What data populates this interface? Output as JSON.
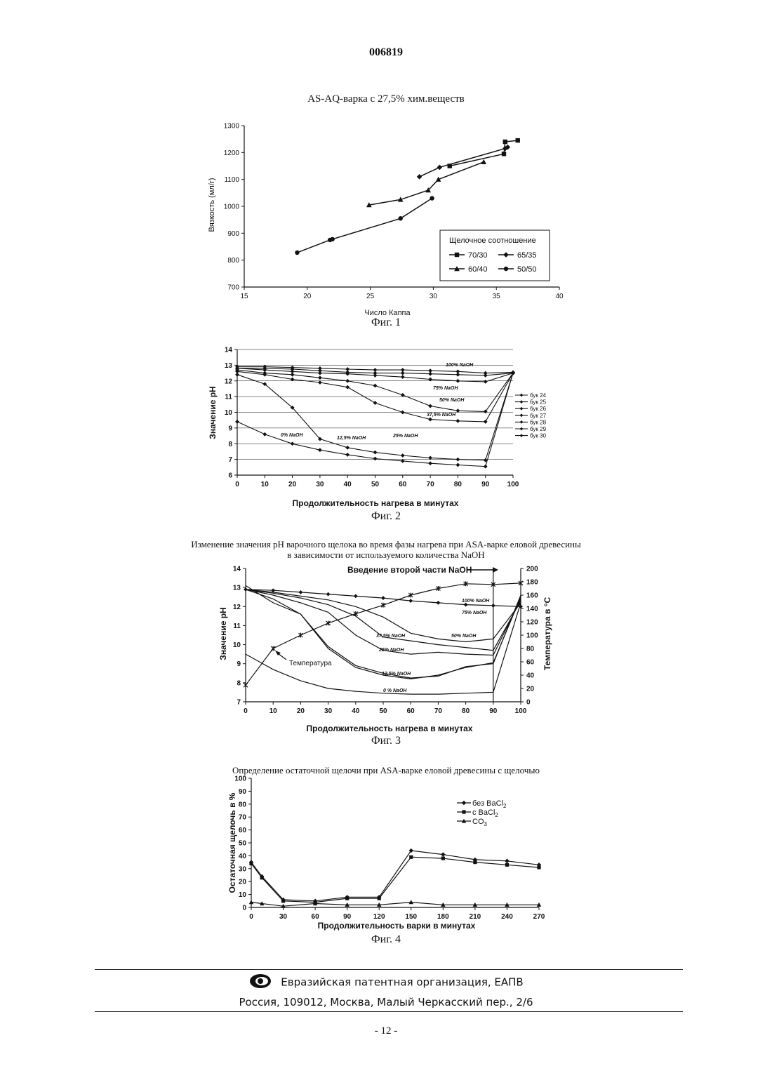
{
  "document": {
    "number": "006819",
    "page": "- 12 -",
    "footer_org": "Евразийская патентная организация, ЕАПВ",
    "footer_address": "Россия, 109012, Москва, Малый Черкасский пер., 2/6",
    "logo_icon": "eapo-logo-icon"
  },
  "chart_data": [
    {
      "id": "fig1",
      "type": "line",
      "title": "AS-AQ-варка с 27,5% хим.веществ",
      "caption": "Фиг. 1",
      "xlabel": "Число Каппа",
      "ylabel": "Вязкость (мл/г)",
      "xlim": [
        15,
        40
      ],
      "ylim": [
        700,
        1300
      ],
      "xticks": [
        "15",
        "20",
        "25",
        "30",
        "35",
        "40"
      ],
      "yticks": [
        "700",
        "800",
        "900",
        "1000",
        "1100",
        "1200",
        "1300"
      ],
      "legend_title": "Щелочное соотношение",
      "legend_position": "bottom-right",
      "series": [
        {
          "name": "70/30",
          "marker": "square",
          "x": [
            31.3,
            35.6,
            35.7,
            36.7
          ],
          "y": [
            1150,
            1195,
            1240,
            1245
          ]
        },
        {
          "name": "65/35",
          "marker": "diamond",
          "x": [
            28.9,
            30.5,
            35.7,
            35.9
          ],
          "y": [
            1110,
            1145,
            1215,
            1220
          ]
        },
        {
          "name": "60/40",
          "marker": "triangle",
          "x": [
            24.9,
            27.4,
            29.6,
            30.4,
            34.0
          ],
          "y": [
            1005,
            1025,
            1060,
            1100,
            1165
          ]
        },
        {
          "name": "50/50",
          "marker": "circle",
          "x": [
            19.2,
            21.8,
            22.0,
            27.4,
            29.9
          ],
          "y": [
            828,
            875,
            878,
            955,
            1030
          ]
        }
      ]
    },
    {
      "id": "fig2",
      "type": "line",
      "caption": "Фиг. 2",
      "xlabel": "Продолжительность нагрева в минутах",
      "ylabel": "Значение pH",
      "xlim": [
        0,
        100
      ],
      "ylim": [
        6,
        14
      ],
      "xticks": [
        "0",
        "10",
        "20",
        "30",
        "40",
        "50",
        "60",
        "70",
        "80",
        "90",
        "100"
      ],
      "yticks": [
        "6",
        "7",
        "8",
        "9",
        "10",
        "11",
        "12",
        "13",
        "14"
      ],
      "grid": true,
      "legend_position": "right",
      "annotations": [
        "100% NaOH",
        "75% NaOH",
        "50% NaOH",
        "37,5% NaOH",
        "25% NaOH",
        "12,5% NaOH",
        "0% NaOH"
      ],
      "series": [
        {
          "name": "бук 24",
          "x": [
            0,
            10,
            20,
            30,
            40,
            50,
            60,
            70,
            80,
            90,
            100
          ],
          "y": [
            9.4,
            8.6,
            8.0,
            7.6,
            7.3,
            7.05,
            6.9,
            6.75,
            6.65,
            6.55,
            12.5
          ]
        },
        {
          "name": "бук 25",
          "x": [
            0,
            10,
            20,
            30,
            40,
            50,
            60,
            70,
            80,
            90,
            100
          ],
          "y": [
            12.4,
            11.8,
            10.3,
            8.3,
            7.75,
            7.45,
            7.25,
            7.1,
            7.0,
            6.95,
            12.5
          ]
        },
        {
          "name": "бук 26",
          "x": [
            0,
            10,
            20,
            30,
            40,
            50,
            60,
            70,
            80,
            90,
            100
          ],
          "y": [
            12.6,
            12.4,
            12.1,
            11.9,
            11.6,
            10.6,
            10.0,
            9.55,
            9.45,
            9.4,
            12.5
          ]
        },
        {
          "name": "бук 27",
          "x": [
            0,
            10,
            20,
            30,
            40,
            50,
            60,
            70,
            80,
            90,
            100
          ],
          "y": [
            12.7,
            12.5,
            12.4,
            12.2,
            12.0,
            11.7,
            11.1,
            10.4,
            10.1,
            10.05,
            12.5
          ]
        },
        {
          "name": "бук 28",
          "x": [
            0,
            10,
            20,
            30,
            40,
            50,
            60,
            70,
            80,
            90,
            100
          ],
          "y": [
            12.8,
            12.7,
            12.6,
            12.5,
            12.45,
            12.35,
            12.25,
            12.1,
            12.0,
            11.95,
            12.5
          ]
        },
        {
          "name": "бук 29",
          "x": [
            0,
            10,
            20,
            30,
            40,
            50,
            60,
            70,
            80,
            90,
            100
          ],
          "y": [
            12.8,
            12.8,
            12.75,
            12.65,
            12.55,
            12.5,
            12.5,
            12.45,
            12.4,
            12.35,
            12.5
          ]
        },
        {
          "name": "бук 30",
          "x": [
            0,
            10,
            20,
            30,
            40,
            50,
            60,
            70,
            80,
            90,
            100
          ],
          "y": [
            12.9,
            12.9,
            12.85,
            12.8,
            12.75,
            12.7,
            12.7,
            12.65,
            12.6,
            12.5,
            12.55
          ]
        }
      ]
    },
    {
      "id": "fig3",
      "type": "line",
      "title": "Изменение значения pH варочного щелока во время фазы нагрева при ASA-варке еловой древесины",
      "subtitle": "в зависимости от используемого количества NaOH",
      "caption": "Фиг. 3",
      "xlabel": "Продолжительность нагрева в минутах",
      "ylabel": "Значение pH",
      "y2label": "Температура в °C",
      "xlim": [
        0,
        100
      ],
      "ylim": [
        7,
        14
      ],
      "y2lim": [
        0,
        200
      ],
      "xticks": [
        "0",
        "10",
        "20",
        "30",
        "40",
        "50",
        "60",
        "70",
        "80",
        "90",
        "100"
      ],
      "yticks": [
        "7",
        "8",
        "9",
        "10",
        "11",
        "12",
        "13",
        "14"
      ],
      "y2ticks": [
        "0",
        "20",
        "40",
        "60",
        "80",
        "100",
        "120",
        "140",
        "160",
        "180",
        "200"
      ],
      "top_annotation": "Введение второй части NaOH",
      "temperature_label": "Температура",
      "annotations": [
        "100% NaOH",
        "75% NaOH",
        "50% NaOH",
        "37,5% NaOH",
        "25% NaOH",
        "12,5% NaOH",
        "0 % NaOH"
      ],
      "series": [
        {
          "name": "100% NaOH",
          "x": [
            0,
            10,
            20,
            30,
            40,
            50,
            60,
            70,
            80,
            90,
            100
          ],
          "y": [
            12.9,
            12.85,
            12.75,
            12.65,
            12.55,
            12.45,
            12.3,
            12.2,
            12.1,
            12.05,
            12.0
          ]
        },
        {
          "name": "75% NaOH",
          "x": [
            0,
            10,
            20,
            30,
            40,
            50,
            60,
            70,
            80,
            90,
            100
          ],
          "y": [
            12.9,
            12.75,
            12.55,
            12.35,
            12.0,
            11.45,
            10.6,
            10.3,
            10.15,
            10.3,
            12.2
          ]
        },
        {
          "name": "50% NaOH",
          "x": [
            0,
            10,
            20,
            30,
            40,
            50,
            60,
            70,
            80,
            90,
            100
          ],
          "y": [
            12.9,
            12.7,
            12.45,
            12.1,
            11.5,
            10.4,
            10.2,
            10.0,
            9.85,
            9.7,
            12.3
          ]
        },
        {
          "name": "37,5% NaOH",
          "x": [
            0,
            10,
            20,
            30,
            40,
            50,
            60,
            70,
            80,
            90,
            100
          ],
          "y": [
            12.9,
            12.6,
            12.2,
            11.7,
            10.5,
            9.7,
            9.5,
            9.6,
            9.5,
            9.45,
            12.4
          ]
        },
        {
          "name": "25% NaOH",
          "x": [
            0,
            10,
            20,
            30,
            40,
            50,
            60,
            70,
            80,
            90,
            100
          ],
          "y": [
            12.9,
            12.4,
            11.6,
            9.8,
            8.8,
            8.4,
            8.2,
            8.4,
            8.8,
            9.05,
            12.5
          ]
        },
        {
          "name": "12,5% NaOH",
          "x": [
            0,
            10,
            20,
            30,
            40,
            50,
            60,
            70,
            80,
            90,
            100
          ],
          "y": [
            13.1,
            12.2,
            11.6,
            9.9,
            8.9,
            8.5,
            8.25,
            8.35,
            8.85,
            9.0,
            12.6
          ]
        },
        {
          "name": "0 % NaOH",
          "x": [
            0,
            10,
            20,
            30,
            40,
            50,
            60,
            70,
            80,
            90,
            100
          ],
          "y": [
            9.5,
            8.7,
            8.1,
            7.7,
            7.55,
            7.45,
            7.4,
            7.4,
            7.45,
            7.5,
            12.2
          ]
        },
        {
          "name": "Температура",
          "axis": "y2",
          "marker": "x",
          "x": [
            0,
            10,
            20,
            30,
            40,
            50,
            60,
            70,
            80,
            90,
            100
          ],
          "y": [
            25,
            80,
            100,
            118,
            132,
            145,
            160,
            170,
            177,
            176,
            178
          ]
        }
      ]
    },
    {
      "id": "fig4",
      "type": "line",
      "title": "Определение остаточной щелочи при ASA-варке еловой древесины с щелочью",
      "caption": "Фиг. 4",
      "xlabel": "Продолжительность варки в минутах",
      "ylabel": "Остаточная щелочь в %",
      "xlim": [
        0,
        270
      ],
      "ylim": [
        0,
        100
      ],
      "xticks": [
        "0",
        "30",
        "60",
        "90",
        "120",
        "150",
        "180",
        "210",
        "240",
        "270"
      ],
      "yticks": [
        "0",
        "10",
        "20",
        "30",
        "40",
        "50",
        "60",
        "70",
        "80",
        "90",
        "100"
      ],
      "legend_position": "top-right",
      "series": [
        {
          "name": "без BaCl2",
          "legend_main": "без BaCl",
          "legend_sub": "2",
          "marker": "diamond",
          "x": [
            0,
            10,
            30,
            60,
            90,
            120,
            150,
            180,
            210,
            240,
            270
          ],
          "y": [
            35,
            24,
            6,
            5,
            8,
            8,
            44,
            41,
            37,
            36,
            33
          ]
        },
        {
          "name": "с BaCl2",
          "legend_main": "с BaCl",
          "legend_sub": "2",
          "marker": "square",
          "x": [
            0,
            10,
            30,
            60,
            90,
            120,
            150,
            180,
            210,
            240,
            270
          ],
          "y": [
            34,
            23,
            5,
            4,
            7,
            7,
            39,
            38,
            35,
            33,
            31
          ]
        },
        {
          "name": "CO3",
          "legend_main": "CO",
          "legend_sub": "3",
          "marker": "triangle",
          "x": [
            0,
            10,
            30,
            60,
            90,
            120,
            150,
            180,
            210,
            240,
            270
          ],
          "y": [
            4,
            3,
            1,
            3,
            2,
            2,
            4,
            2,
            2,
            2,
            2
          ]
        }
      ]
    }
  ]
}
